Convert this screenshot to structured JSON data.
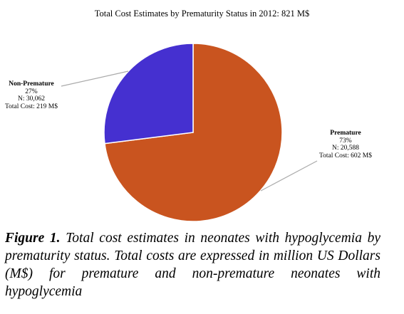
{
  "chart_data": {
    "type": "pie",
    "title": "Total Cost Estimates by Prematurity Status in 2012: 821 M$",
    "slices": [
      {
        "name": "Premature",
        "percent": 73,
        "pct_label": "73%",
        "n_label": "N: 20,588",
        "cost_label": "Total Cost: 602 M$",
        "color": "#c9541f"
      },
      {
        "name": "Non-Premature",
        "percent": 27,
        "pct_label": "27%",
        "n_label": "N: 30,062",
        "cost_label": "Total Cost: 219 M$",
        "color": "#4530d0"
      }
    ]
  },
  "caption": {
    "figure_label": "Figure 1.",
    "text": "Total cost estimates in neonates with hypoglycemia by prematurity status. Total costs are expressed in million US Dollars (M$) for premature and non-premature neonates with hypoglycemia"
  }
}
